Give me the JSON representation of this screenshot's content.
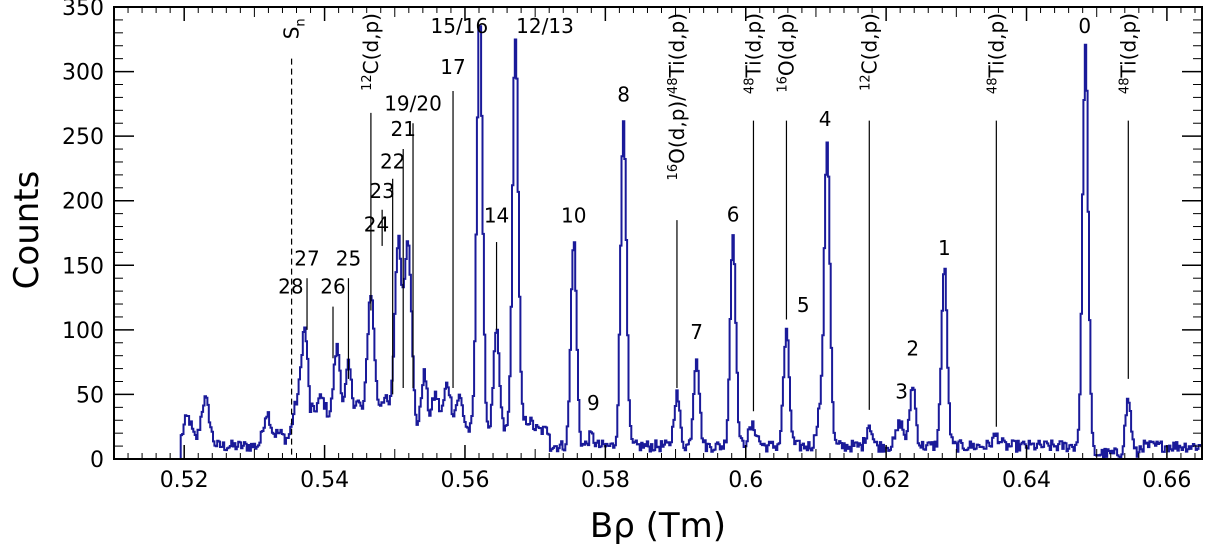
{
  "chart_data": {
    "type": "line",
    "xlabel": "Bρ (Tm)",
    "ylabel": "Counts",
    "xlim": [
      0.51,
      0.665
    ],
    "ylim": [
      0,
      350
    ],
    "grid": false,
    "legend": "none",
    "colors": {
      "spectrum": "#1a1a99",
      "axes": "#000000",
      "markers": "#000000"
    },
    "x_ticks": [
      {
        "value": 0.52,
        "label": "0.52"
      },
      {
        "value": 0.54,
        "label": "0.54"
      },
      {
        "value": 0.56,
        "label": "0.56"
      },
      {
        "value": 0.58,
        "label": "0.58"
      },
      {
        "value": 0.6,
        "label": "0.6"
      },
      {
        "value": 0.62,
        "label": "0.62"
      },
      {
        "value": 0.64,
        "label": "0.64"
      },
      {
        "value": 0.66,
        "label": "0.66"
      }
    ],
    "y_ticks": [
      {
        "value": 0,
        "label": "0"
      },
      {
        "value": 50,
        "label": "50"
      },
      {
        "value": 100,
        "label": "100"
      },
      {
        "value": 150,
        "label": "150"
      },
      {
        "value": 200,
        "label": "200"
      },
      {
        "value": 250,
        "label": "250"
      },
      {
        "value": 300,
        "label": "300"
      },
      {
        "value": 350,
        "label": "350"
      }
    ],
    "background_level": 10,
    "spectrum_range": [
      0.5195,
      0.665
    ],
    "peaks": [
      {
        "x": 0.5205,
        "height": 22,
        "width": 0.0006
      },
      {
        "x": 0.523,
        "height": 36,
        "width": 0.0006
      },
      {
        "x": 0.5318,
        "height": 25,
        "width": 0.0005
      },
      {
        "x": 0.5335,
        "height": 10,
        "width": 0.0008
      },
      {
        "x": 0.536,
        "height": 30,
        "width": 0.0006
      },
      {
        "x": 0.5372,
        "height": 86,
        "width": 0.0005
      },
      {
        "x": 0.5395,
        "height": 25,
        "width": 0.0008
      },
      {
        "x": 0.5418,
        "height": 64,
        "width": 0.0005
      },
      {
        "x": 0.5434,
        "height": 48,
        "width": 0.0004
      },
      {
        "x": 0.5447,
        "height": 22,
        "width": 0.0006
      },
      {
        "x": 0.5466,
        "height": 106,
        "width": 0.0005
      },
      {
        "x": 0.5485,
        "height": 25,
        "width": 0.0007
      },
      {
        "x": 0.5505,
        "height": 145,
        "width": 0.0005
      },
      {
        "x": 0.5519,
        "height": 148,
        "width": 0.0005
      },
      {
        "x": 0.5542,
        "height": 44,
        "width": 0.0004
      },
      {
        "x": 0.5558,
        "height": 28,
        "width": 0.0005
      },
      {
        "x": 0.5575,
        "height": 36,
        "width": 0.0005
      },
      {
        "x": 0.5592,
        "height": 26,
        "width": 0.0005
      },
      {
        "x": 0.5621,
        "height": 324,
        "width": 0.0004
      },
      {
        "x": 0.5645,
        "height": 76,
        "width": 0.0004
      },
      {
        "x": 0.5672,
        "height": 307,
        "width": 0.0004
      },
      {
        "x": 0.569,
        "height": 8,
        "width": 0.0006
      },
      {
        "x": 0.5755,
        "height": 160,
        "width": 0.0004
      },
      {
        "x": 0.578,
        "height": 8,
        "width": 0.0004
      },
      {
        "x": 0.5826,
        "height": 256,
        "width": 0.0004
      },
      {
        "x": 0.5902,
        "height": 40,
        "width": 0.0004
      },
      {
        "x": 0.593,
        "height": 70,
        "width": 0.0004
      },
      {
        "x": 0.5982,
        "height": 164,
        "width": 0.0004
      },
      {
        "x": 0.601,
        "height": 15,
        "width": 0.0006
      },
      {
        "x": 0.6058,
        "height": 88,
        "width": 0.0004
      },
      {
        "x": 0.6105,
        "height": 25,
        "width": 0.0004
      },
      {
        "x": 0.6116,
        "height": 237,
        "width": 0.0004
      },
      {
        "x": 0.6176,
        "height": 17,
        "width": 0.0004
      },
      {
        "x": 0.622,
        "height": 18,
        "width": 0.0005
      },
      {
        "x": 0.6238,
        "height": 48,
        "width": 0.0004
      },
      {
        "x": 0.6283,
        "height": 138,
        "width": 0.0004
      },
      {
        "x": 0.6357,
        "height": 8,
        "width": 0.0005
      },
      {
        "x": 0.6484,
        "height": 315,
        "width": 0.0004
      },
      {
        "x": 0.6545,
        "height": 42,
        "width": 0.0004
      }
    ],
    "sn_marker": {
      "x": 0.5353,
      "label": "S",
      "sub": "n"
    },
    "state_labels": [
      {
        "text": "0",
        "x": 0.6483,
        "y": 330,
        "line_from": null,
        "line_to": null
      },
      {
        "text": "1",
        "x": 0.6283,
        "y": 158,
        "line_from": null,
        "line_to": null
      },
      {
        "text": "2",
        "x": 0.6238,
        "y": 80,
        "line_from": null,
        "line_to": null
      },
      {
        "text": "3",
        "x": 0.6222,
        "y": 47,
        "line_from": null,
        "line_to": null
      },
      {
        "text": "4",
        "x": 0.6113,
        "y": 258,
        "line_from": null,
        "line_to": null
      },
      {
        "text": "5",
        "x": 0.6082,
        "y": 114,
        "line_from": null,
        "line_to": null
      },
      {
        "text": "6",
        "x": 0.5982,
        "y": 184,
        "line_from": null,
        "line_to": null
      },
      {
        "text": "7",
        "x": 0.593,
        "y": 93,
        "line_from": null,
        "line_to": null
      },
      {
        "text": "8",
        "x": 0.5826,
        "y": 277,
        "line_from": null,
        "line_to": null
      },
      {
        "text": "9",
        "x": 0.5783,
        "y": 38,
        "line_from": null,
        "line_to": null
      },
      {
        "text": "10",
        "x": 0.5755,
        "y": 183,
        "line_from": null,
        "line_to": null
      },
      {
        "text": "12/13",
        "x": 0.5714,
        "y": 330,
        "line_from": null,
        "line_to": null
      },
      {
        "text": "14",
        "x": 0.5645,
        "y": 183,
        "line_from": 168,
        "line_to": 100
      },
      {
        "text": "15/16",
        "x": 0.5592,
        "y": 330,
        "line_from": null,
        "line_to": null
      },
      {
        "text": "17",
        "x": 0.5583,
        "y": 298,
        "line_from": 285,
        "line_to": 55
      },
      {
        "text": "19/20",
        "x": 0.5526,
        "y": 270,
        "line_from": 260,
        "line_to": 55
      },
      {
        "text": "21",
        "x": 0.5512,
        "y": 250,
        "line_from": 240,
        "line_to": 55
      },
      {
        "text": "22",
        "x": 0.5497,
        "y": 225,
        "line_from": 217,
        "line_to": 50
      },
      {
        "text": "23",
        "x": 0.5482,
        "y": 202,
        "line_from": 193,
        "line_to": 165
      },
      {
        "text": "24",
        "x": 0.5474,
        "y": 176,
        "line_from": null,
        "line_to": null
      },
      {
        "text": "25",
        "x": 0.5434,
        "y": 150,
        "line_from": 140,
        "line_to": 62
      },
      {
        "text": "26",
        "x": 0.5412,
        "y": 128,
        "line_from": 118,
        "line_to": 78
      },
      {
        "text": "27",
        "x": 0.5375,
        "y": 150,
        "line_from": 140,
        "line_to": 100
      },
      {
        "text": "28",
        "x": 0.5352,
        "y": 128,
        "line_from": null,
        "line_to": null
      }
    ],
    "reaction_labels": [
      {
        "text": "C(d,p)",
        "sup": "12",
        "x": 0.5466,
        "y_top": 350,
        "line_from": 268,
        "line_to": 115
      },
      {
        "text": "O(d,p)/",
        "sup": "16",
        "text2": "Ti(d,p)",
        "sup2": "48",
        "x": 0.5902,
        "y_top": 350,
        "line_from": 185,
        "line_to": 55
      },
      {
        "text": "Ti(d,p)",
        "sup": "48",
        "x": 0.6011,
        "y_top": 350,
        "line_from": 262,
        "line_to": 37
      },
      {
        "text": "O(d,p)",
        "sup": "16",
        "x": 0.6058,
        "y_top": 350,
        "line_from": 262,
        "line_to": 108
      },
      {
        "text": "C(d,p)",
        "sup": "12",
        "x": 0.6176,
        "y_top": 350,
        "line_from": 262,
        "line_to": 38
      },
      {
        "text": "Ti(d,p)",
        "sup": "48",
        "x": 0.6357,
        "y_top": 350,
        "line_from": 262,
        "line_to": 25
      },
      {
        "text": "Ti(d,p)",
        "sup": "48",
        "x": 0.6545,
        "y_top": 350,
        "line_from": 262,
        "line_to": 62
      }
    ]
  }
}
